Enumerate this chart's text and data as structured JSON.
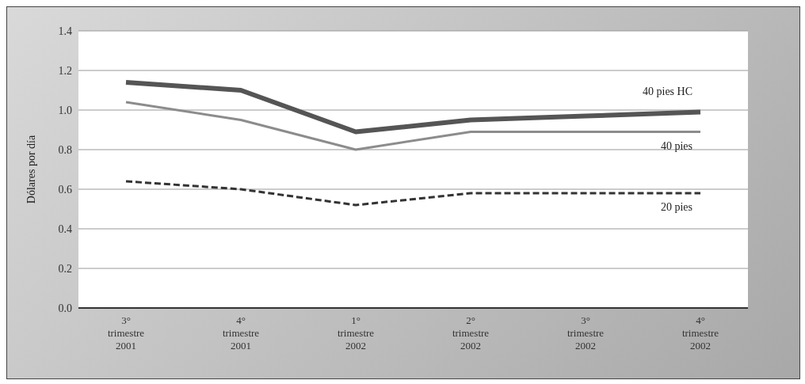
{
  "chart_data": {
    "type": "line",
    "ylabel": "Dólares por día",
    "categories": [
      "3° trimestre 2001",
      "4° trimestre 2001",
      "1° trimestre 2002",
      "2° trimestre 2002",
      "3° trimestre 2002",
      "4° trimestre 2002"
    ],
    "series": [
      {
        "name": "40 pies HC",
        "color": "#555555",
        "values": [
          1.14,
          1.1,
          0.89,
          0.95,
          0.97,
          0.99
        ]
      },
      {
        "name": "40 pies",
        "color": "#8c8c8c",
        "values": [
          1.04,
          0.95,
          0.8,
          0.89,
          0.89,
          0.89
        ]
      },
      {
        "name": "20 pies",
        "color": "#333333",
        "line_style": "dashed",
        "values": [
          0.64,
          0.6,
          0.52,
          0.58,
          0.58,
          0.58
        ]
      }
    ],
    "ylim": [
      0,
      1.4
    ],
    "yticks": [
      {
        "value": 0,
        "label": "0.0"
      },
      0.2,
      0.4,
      0.6,
      0.8,
      {
        "value": 1,
        "label": "1.0"
      },
      1.2,
      1.4
    ],
    "grid": "y",
    "legend": false,
    "marker": "none"
  }
}
